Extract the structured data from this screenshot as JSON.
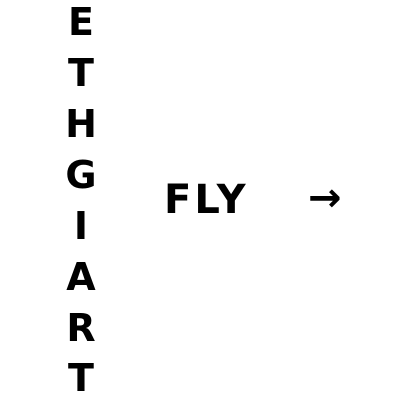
{
  "vertical_word": {
    "letters": [
      "E",
      "T",
      "H",
      "G",
      "I",
      "A",
      "R",
      "T"
    ]
  },
  "horizontal_word": "FLY",
  "arrow_symbol": "→",
  "colors": {
    "background": "#ffffff",
    "text": "#000000"
  }
}
